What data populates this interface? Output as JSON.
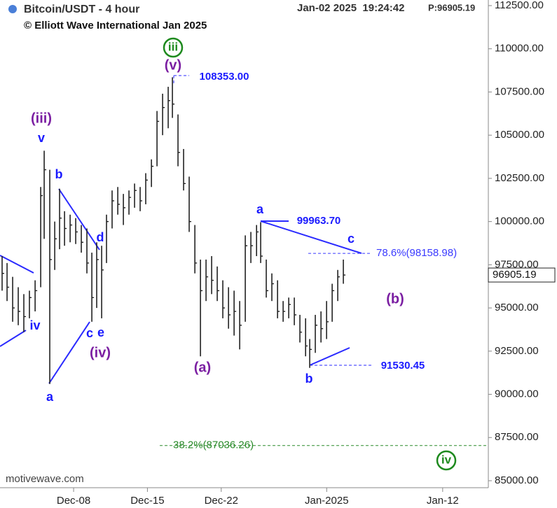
{
  "chart_data": {
    "type": "ohlc",
    "title": "Bitcoin/USDT - 4 hour",
    "subtitle": "© Elliott Wave International Jan 2025",
    "timestamp": "Jan-02 2025  19:24:42",
    "last_price_text": "P:96905.19",
    "watermark": "motivewave.com",
    "color": "#222222",
    "xlim": [
      1.02,
      47.33
    ],
    "xticks": [
      {
        "value": 8,
        "label": "Dec-08"
      },
      {
        "value": 15,
        "label": "Dec-15"
      },
      {
        "value": 22,
        "label": "Dec-22"
      },
      {
        "value": 32,
        "label": "Jan-2025"
      },
      {
        "value": 43,
        "label": "Jan-12"
      }
    ],
    "ylim": [
      85000,
      112500
    ],
    "yticks": [
      {
        "value": 85000,
        "label": "85000.00"
      },
      {
        "value": 87500,
        "label": "87500.00"
      },
      {
        "value": 90000,
        "label": "90000.00"
      },
      {
        "value": 92500,
        "label": "92500.00"
      },
      {
        "value": 95000,
        "label": "95000.00"
      },
      {
        "value": 97500,
        "label": "97500.00"
      },
      {
        "value": 100000,
        "label": "100000.00"
      },
      {
        "value": 102500,
        "label": "102500.00"
      },
      {
        "value": 105000,
        "label": "105000.00"
      },
      {
        "value": 107500,
        "label": "107500.00"
      },
      {
        "value": 110000,
        "label": "110000.00"
      },
      {
        "value": 112500,
        "label": "112500.00"
      }
    ],
    "x": [
      1.22,
      1.69,
      2.22,
      2.75,
      3.28,
      3.81,
      4.35,
      4.88,
      5.21,
      5.74,
      6.21,
      6.67,
      7.14,
      7.67,
      8.2,
      8.73,
      9.26,
      9.73,
      10.19,
      10.66,
      11.12,
      11.65,
      12.19,
      12.72,
      13.25,
      13.78,
      14.31,
      14.84,
      15.38,
      15.91,
      16.44,
      16.97,
      17.37,
      17.9,
      18.43,
      18.96,
      19.5,
      20.03,
      20.56,
      21.09,
      21.62,
      22.15,
      22.69,
      23.22,
      23.75,
      24.28,
      24.81,
      25.35,
      25.74,
      26.27,
      26.8,
      27.34,
      27.87,
      28.4,
      28.93,
      29.46,
      30.0,
      30.39,
      30.92,
      31.46,
      31.99,
      32.52,
      33.05,
      33.58
    ],
    "high": [
      98000,
      97600,
      96800,
      96200,
      95800,
      96000,
      96600,
      102000,
      104100,
      103000,
      100000,
      101900,
      100600,
      100400,
      100200,
      99800,
      99600,
      98200,
      98800,
      98600,
      100400,
      101800,
      102000,
      101600,
      101800,
      102200,
      102000,
      102800,
      103600,
      106400,
      107400,
      107800,
      108353,
      106200,
      104200,
      102600,
      99800,
      97800,
      97800,
      98000,
      97400,
      96600,
      96200,
      96000,
      95400,
      99200,
      99400,
      99800,
      99963.7,
      97800,
      97000,
      96600,
      95400,
      95600,
      95600,
      94600,
      94400,
      93200,
      94600,
      94800,
      95400,
      96400,
      97200,
      97800
    ],
    "low": [
      96000,
      95400,
      94200,
      94000,
      93600,
      94400,
      94800,
      96200,
      99000,
      90600,
      97200,
      98400,
      98600,
      98800,
      98700,
      98200,
      97000,
      94200,
      95000,
      94400,
      97600,
      99600,
      100400,
      99800,
      100400,
      100800,
      100600,
      101000,
      102000,
      103200,
      105000,
      105400,
      106000,
      103200,
      101800,
      99400,
      97000,
      92200,
      95400,
      95800,
      95400,
      94400,
      93800,
      93400,
      92600,
      94200,
      97600,
      98000,
      97600,
      95600,
      95400,
      94400,
      94200,
      94400,
      94000,
      93000,
      92200,
      91530.45,
      92400,
      93000,
      93200,
      94200,
      95400,
      96400
    ],
    "close": [
      97000,
      96200,
      95000,
      94800,
      94500,
      95600,
      96000,
      101500,
      103000,
      97800,
      99000,
      100200,
      99600,
      99800,
      99400,
      98800,
      97600,
      95600,
      97800,
      97200,
      100000,
      101200,
      101000,
      100800,
      101400,
      101800,
      101200,
      102400,
      103200,
      105800,
      106600,
      107000,
      106800,
      104000,
      102200,
      100000,
      97600,
      96000,
      96800,
      96600,
      96000,
      95000,
      94600,
      94800,
      94000,
      98600,
      98600,
      99400,
      98000,
      96000,
      96400,
      94800,
      94800,
      95200,
      94600,
      93600,
      92800,
      92600,
      94000,
      93800,
      94200,
      96000,
      96800,
      96905.19
    ],
    "levels": [
      {
        "label": "78.6%(98158.98)",
        "value": 98158.98,
        "color": "#3a3aff"
      },
      {
        "label": "38.2%(87036.26)",
        "value": 87036.26,
        "color": "#2a8a2a"
      }
    ],
    "annotations": [
      {
        "text": "(iii)",
        "color": "#7b1fa2"
      },
      {
        "text": "v",
        "color": "#1a1aff"
      },
      {
        "text": "b",
        "color": "#1a1aff"
      },
      {
        "text": "d",
        "color": "#1a1aff"
      },
      {
        "text": "c",
        "color": "#1a1aff"
      },
      {
        "text": "e",
        "color": "#1a1aff"
      },
      {
        "text": "(iv)",
        "color": "#7b1fa2"
      },
      {
        "text": "iv",
        "color": "#1a1aff"
      },
      {
        "text": "a",
        "color": "#1a1aff"
      },
      {
        "text": "iii",
        "color": "#1e8a1e",
        "circle": true
      },
      {
        "text": "(v)",
        "color": "#7b1fa2"
      },
      {
        "text": "108353.00",
        "color": "#1a1aff"
      },
      {
        "text": "(a)",
        "color": "#7b1fa2"
      },
      {
        "text": "a",
        "color": "#1a1aff"
      },
      {
        "text": "99963.70",
        "color": "#1a1aff"
      },
      {
        "text": "c",
        "color": "#1a1aff"
      },
      {
        "text": "(b)",
        "color": "#7b1fa2"
      },
      {
        "text": "91530.45",
        "color": "#1a1aff"
      },
      {
        "text": "b",
        "color": "#1a1aff"
      },
      {
        "text": "iv",
        "color": "#1e8a1e",
        "circle": true
      }
    ]
  }
}
